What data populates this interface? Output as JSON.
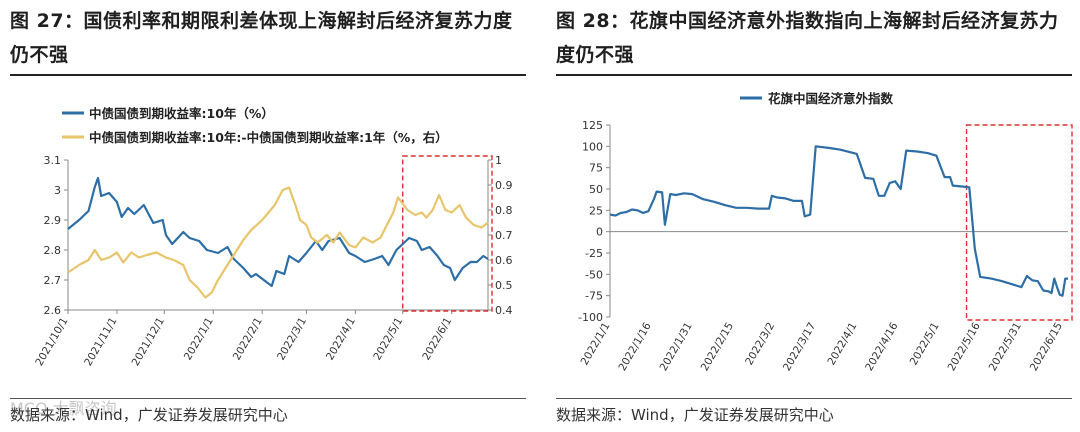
{
  "left": {
    "title": "图 27：国债利率和期限利差体现上海解封后经济复苏力度仍不强",
    "source": "数据来源：Wind，广发证券发展研究中心",
    "watermark": "MCO 大飘咨询",
    "chart_data": {
      "type": "line",
      "legend_position": "top-left",
      "grid": false,
      "x_range": [
        "2021-10-01",
        "2022-06-24"
      ],
      "x_ticks": [
        "2021/10/1",
        "2021/11/1",
        "2021/12/1",
        "2022/1/1",
        "2022/2/1",
        "2022/3/1",
        "2022/4/1",
        "2022/5/1",
        "2022/6/1"
      ],
      "x_tick_dates": [
        "2021-10-01",
        "2021-11-01",
        "2021-12-01",
        "2022-01-01",
        "2022-02-01",
        "2022-03-01",
        "2022-04-01",
        "2022-05-01",
        "2022-06-01"
      ],
      "y_left": {
        "min": 2.6,
        "max": 3.1,
        "ticks": [
          "2.6",
          "2.7",
          "2.8",
          "2.9",
          "3",
          "3.1"
        ]
      },
      "y_right": {
        "min": 0.4,
        "max": 1.0,
        "ticks": [
          "0.4",
          "0.5",
          "0.6",
          "0.7",
          "0.8",
          "0.9",
          "1"
        ]
      },
      "highlight": {
        "x_start": "2022-05-01",
        "x_end": "2022-06-24",
        "color": "#e03030"
      },
      "series": [
        {
          "name": "中债国债到期收益率:10年（%）",
          "axis": "left",
          "color": "#2e6ea6",
          "points": [
            [
              "2021-10-01",
              2.87
            ],
            [
              "2021-10-08",
              2.9
            ],
            [
              "2021-10-14",
              2.93
            ],
            [
              "2021-10-18",
              3.01
            ],
            [
              "2021-10-20",
              3.04
            ],
            [
              "2021-10-22",
              2.98
            ],
            [
              "2021-10-27",
              2.99
            ],
            [
              "2021-11-01",
              2.96
            ],
            [
              "2021-11-04",
              2.91
            ],
            [
              "2021-11-08",
              2.94
            ],
            [
              "2021-11-12",
              2.92
            ],
            [
              "2021-11-18",
              2.95
            ],
            [
              "2021-11-24",
              2.89
            ],
            [
              "2021-11-30",
              2.9
            ],
            [
              "2021-12-02",
              2.85
            ],
            [
              "2021-12-06",
              2.82
            ],
            [
              "2021-12-13",
              2.86
            ],
            [
              "2021-12-17",
              2.84
            ],
            [
              "2021-12-23",
              2.83
            ],
            [
              "2021-12-28",
              2.8
            ],
            [
              "2022-01-04",
              2.79
            ],
            [
              "2022-01-10",
              2.81
            ],
            [
              "2022-01-14",
              2.77
            ],
            [
              "2022-01-20",
              2.74
            ],
            [
              "2022-01-25",
              2.71
            ],
            [
              "2022-01-28",
              2.72
            ],
            [
              "2022-02-07",
              2.68
            ],
            [
              "2022-02-10",
              2.73
            ],
            [
              "2022-02-15",
              2.72
            ],
            [
              "2022-02-18",
              2.78
            ],
            [
              "2022-02-24",
              2.76
            ],
            [
              "2022-03-01",
              2.79
            ],
            [
              "2022-03-07",
              2.83
            ],
            [
              "2022-03-11",
              2.8
            ],
            [
              "2022-03-15",
              2.83
            ],
            [
              "2022-03-22",
              2.84
            ],
            [
              "2022-03-28",
              2.79
            ],
            [
              "2022-04-01",
              2.78
            ],
            [
              "2022-04-07",
              2.76
            ],
            [
              "2022-04-13",
              2.77
            ],
            [
              "2022-04-18",
              2.78
            ],
            [
              "2022-04-22",
              2.75
            ],
            [
              "2022-04-27",
              2.8
            ],
            [
              "2022-05-05",
              2.84
            ],
            [
              "2022-05-10",
              2.83
            ],
            [
              "2022-05-13",
              2.8
            ],
            [
              "2022-05-18",
              2.81
            ],
            [
              "2022-05-23",
              2.78
            ],
            [
              "2022-05-27",
              2.75
            ],
            [
              "2022-05-31",
              2.74
            ],
            [
              "2022-06-03",
              2.7
            ],
            [
              "2022-06-08",
              2.74
            ],
            [
              "2022-06-13",
              2.76
            ],
            [
              "2022-06-17",
              2.76
            ],
            [
              "2022-06-21",
              2.78
            ],
            [
              "2022-06-24",
              2.77
            ]
          ]
        },
        {
          "name": "中债国债到期收益率:10年:-中债国债到期收益率:1年（%，右）",
          "axis": "right",
          "color": "#e8c56a",
          "points": [
            [
              "2021-10-01",
              0.55
            ],
            [
              "2021-10-08",
              0.58
            ],
            [
              "2021-10-14",
              0.6
            ],
            [
              "2021-10-18",
              0.64
            ],
            [
              "2021-10-22",
              0.6
            ],
            [
              "2021-10-27",
              0.61
            ],
            [
              "2021-11-01",
              0.63
            ],
            [
              "2021-11-05",
              0.59
            ],
            [
              "2021-11-10",
              0.63
            ],
            [
              "2021-11-15",
              0.61
            ],
            [
              "2021-11-20",
              0.62
            ],
            [
              "2021-11-26",
              0.63
            ],
            [
              "2021-12-02",
              0.61
            ],
            [
              "2021-12-07",
              0.6
            ],
            [
              "2021-12-13",
              0.58
            ],
            [
              "2021-12-17",
              0.52
            ],
            [
              "2021-12-22",
              0.49
            ],
            [
              "2021-12-27",
              0.45
            ],
            [
              "2021-12-31",
              0.47
            ],
            [
              "2022-01-04",
              0.52
            ],
            [
              "2022-01-10",
              0.58
            ],
            [
              "2022-01-14",
              0.62
            ],
            [
              "2022-01-20",
              0.68
            ],
            [
              "2022-01-25",
              0.72
            ],
            [
              "2022-02-01",
              0.76
            ],
            [
              "2022-02-09",
              0.82
            ],
            [
              "2022-02-14",
              0.88
            ],
            [
              "2022-02-18",
              0.89
            ],
            [
              "2022-02-22",
              0.82
            ],
            [
              "2022-02-25",
              0.76
            ],
            [
              "2022-03-01",
              0.74
            ],
            [
              "2022-03-04",
              0.69
            ],
            [
              "2022-03-08",
              0.67
            ],
            [
              "2022-03-14",
              0.7
            ],
            [
              "2022-03-18",
              0.67
            ],
            [
              "2022-03-22",
              0.71
            ],
            [
              "2022-03-28",
              0.66
            ],
            [
              "2022-04-01",
              0.65
            ],
            [
              "2022-04-06",
              0.69
            ],
            [
              "2022-04-12",
              0.67
            ],
            [
              "2022-04-17",
              0.69
            ],
            [
              "2022-04-21",
              0.74
            ],
            [
              "2022-04-25",
              0.79
            ],
            [
              "2022-04-28",
              0.85
            ],
            [
              "2022-05-04",
              0.8
            ],
            [
              "2022-05-09",
              0.78
            ],
            [
              "2022-05-13",
              0.79
            ],
            [
              "2022-05-16",
              0.77
            ],
            [
              "2022-05-20",
              0.8
            ],
            [
              "2022-05-24",
              0.86
            ],
            [
              "2022-05-28",
              0.8
            ],
            [
              "2022-06-01",
              0.79
            ],
            [
              "2022-06-06",
              0.82
            ],
            [
              "2022-06-10",
              0.77
            ],
            [
              "2022-06-15",
              0.74
            ],
            [
              "2022-06-20",
              0.73
            ],
            [
              "2022-06-24",
              0.75
            ]
          ]
        }
      ]
    }
  },
  "right": {
    "title": "图 28：花旗中国经济意外指数指向上海解封后经济复苏力度仍不强",
    "source": "数据来源：Wind，广发证券发展研究中心",
    "chart_data": {
      "type": "line",
      "legend_position": "top-center",
      "grid": false,
      "x_range": [
        "2022-01-01",
        "2022-06-17"
      ],
      "x_ticks": [
        "2022/1/1",
        "2022/1/16",
        "2022/1/31",
        "2022/2/15",
        "2022/3/2",
        "2022/3/17",
        "2022/4/1",
        "2022/4/16",
        "2022/5/1",
        "2022/5/16",
        "2022/5/31",
        "2022/6/15"
      ],
      "x_tick_dates": [
        "2022-01-01",
        "2022-01-16",
        "2022-01-31",
        "2022-02-15",
        "2022-03-02",
        "2022-03-17",
        "2022-04-01",
        "2022-04-16",
        "2022-05-01",
        "2022-05-16",
        "2022-05-31",
        "2022-06-15"
      ],
      "y": {
        "min": -100,
        "max": 125,
        "ticks": [
          "-100",
          "-75",
          "-50",
          "-25",
          "0",
          "25",
          "50",
          "75",
          "100",
          "125"
        ]
      },
      "highlight": {
        "x_start": "2022-05-11",
        "x_end": "2022-06-17",
        "color": "#e03030"
      },
      "series": [
        {
          "name": "花旗中国经济意外指数",
          "color": "#2e6ea6",
          "points": [
            [
              "2022-01-01",
              20
            ],
            [
              "2022-01-03",
              19
            ],
            [
              "2022-01-05",
              22
            ],
            [
              "2022-01-07",
              23
            ],
            [
              "2022-01-09",
              26
            ],
            [
              "2022-01-11",
              25
            ],
            [
              "2022-01-13",
              22
            ],
            [
              "2022-01-15",
              24
            ],
            [
              "2022-01-17",
              38
            ],
            [
              "2022-01-18",
              47
            ],
            [
              "2022-01-20",
              46
            ],
            [
              "2022-01-21",
              8
            ],
            [
              "2022-01-23",
              44
            ],
            [
              "2022-01-25",
              43
            ],
            [
              "2022-01-28",
              45
            ],
            [
              "2022-01-31",
              44
            ],
            [
              "2022-02-04",
              38
            ],
            [
              "2022-02-08",
              35
            ],
            [
              "2022-02-12",
              31
            ],
            [
              "2022-02-16",
              28
            ],
            [
              "2022-02-20",
              28
            ],
            [
              "2022-02-24",
              27
            ],
            [
              "2022-02-28",
              27
            ],
            [
              "2022-03-01",
              42
            ],
            [
              "2022-03-03",
              40
            ],
            [
              "2022-03-06",
              39
            ],
            [
              "2022-03-09",
              36
            ],
            [
              "2022-03-12",
              36
            ],
            [
              "2022-03-13",
              18
            ],
            [
              "2022-03-15",
              20
            ],
            [
              "2022-03-17",
              100
            ],
            [
              "2022-03-22",
              98
            ],
            [
              "2022-03-26",
              96
            ],
            [
              "2022-03-31",
              92
            ],
            [
              "2022-04-01",
              91
            ],
            [
              "2022-04-04",
              63
            ],
            [
              "2022-04-07",
              62
            ],
            [
              "2022-04-09",
              42
            ],
            [
              "2022-04-11",
              42
            ],
            [
              "2022-04-13",
              57
            ],
            [
              "2022-04-15",
              59
            ],
            [
              "2022-04-17",
              50
            ],
            [
              "2022-04-19",
              95
            ],
            [
              "2022-04-23",
              94
            ],
            [
              "2022-04-27",
              92
            ],
            [
              "2022-04-30",
              89
            ],
            [
              "2022-05-03",
              64
            ],
            [
              "2022-05-05",
              64
            ],
            [
              "2022-05-06",
              54
            ],
            [
              "2022-05-09",
              53
            ],
            [
              "2022-05-12",
              52
            ],
            [
              "2022-05-14",
              -20
            ],
            [
              "2022-05-16",
              -53
            ],
            [
              "2022-05-20",
              -55
            ],
            [
              "2022-05-24",
              -58
            ],
            [
              "2022-05-28",
              -62
            ],
            [
              "2022-05-31",
              -65
            ],
            [
              "2022-06-02",
              -52
            ],
            [
              "2022-06-04",
              -57
            ],
            [
              "2022-06-06",
              -58
            ],
            [
              "2022-06-08",
              -69
            ],
            [
              "2022-06-10",
              -70
            ],
            [
              "2022-06-11",
              -72
            ],
            [
              "2022-06-12",
              -55
            ],
            [
              "2022-06-13",
              -65
            ],
            [
              "2022-06-14",
              -74
            ],
            [
              "2022-06-15",
              -75
            ],
            [
              "2022-06-16",
              -55
            ],
            [
              "2022-06-17",
              -55
            ]
          ]
        }
      ]
    }
  }
}
